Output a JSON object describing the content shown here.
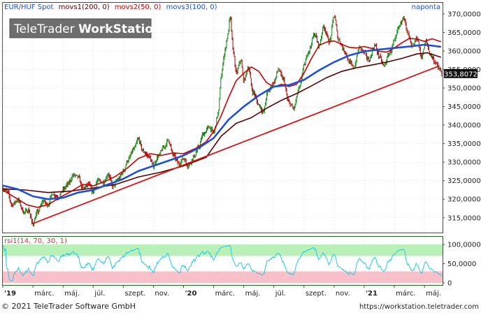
{
  "header": {
    "instrument": "EUR/HUF Spot",
    "indicators": [
      {
        "label": "movs1(200, 0)",
        "color": "#5a0000"
      },
      {
        "label": "movs2(50, 0)",
        "color": "#cc0000"
      },
      {
        "label": "movs3(100, 0)",
        "color": "#1e4fd8"
      }
    ],
    "period": "naponta"
  },
  "watermark": {
    "part1": "TeleTrader ",
    "part2": "WorkStation"
  },
  "price_badge": "353,8072",
  "footer": {
    "copyright": "© 2021 TeleTrader Software GmbH",
    "url": "https://workstation.teletrader.com"
  },
  "rsi": {
    "label": "rsi1(14, 70, 30, 1)",
    "ticks": [
      {
        "value": 100,
        "label": "100,0000"
      },
      {
        "value": 50,
        "label": "50,0000"
      },
      {
        "value": 0,
        "label": "0"
      }
    ],
    "upper_zone": [
      70,
      100
    ],
    "lower_zone": [
      0,
      30
    ],
    "colors": {
      "line": "#22c8e8",
      "upper": "#b8f0b8",
      "lower": "#f8c0c8"
    }
  },
  "chart_data": {
    "type": "line",
    "y_ticks": [
      {
        "value": 315000,
        "label": "315,0000"
      },
      {
        "value": 320000,
        "label": "320,0000"
      },
      {
        "value": 325000,
        "label": "325,0000"
      },
      {
        "value": 330000,
        "label": "330,0000"
      },
      {
        "value": 335000,
        "label": "335,0000"
      },
      {
        "value": 340000,
        "label": "340,0000"
      },
      {
        "value": 345000,
        "label": "345,0000"
      },
      {
        "value": 350000,
        "label": "350,0000"
      },
      {
        "value": 355000,
        "label": "355,0000"
      },
      {
        "value": 360000,
        "label": "360,0000"
      },
      {
        "value": 365000,
        "label": "365,0000"
      },
      {
        "value": 370000,
        "label": "370,0000"
      }
    ],
    "ylim": [
      311000,
      373000
    ],
    "x_ticks": [
      {
        "label": "'19",
        "m": 0,
        "bold": true
      },
      {
        "label": "márc.",
        "m": 2
      },
      {
        "label": "máj.",
        "m": 4
      },
      {
        "label": "júl.",
        "m": 6
      },
      {
        "label": "szept.",
        "m": 8
      },
      {
        "label": "nov.",
        "m": 10
      },
      {
        "label": "'20",
        "m": 12,
        "bold": true
      },
      {
        "label": "márc.",
        "m": 14
      },
      {
        "label": "máj.",
        "m": 16
      },
      {
        "label": "júl.",
        "m": 18
      },
      {
        "label": "szept.",
        "m": 20
      },
      {
        "label": "nov.",
        "m": 22
      },
      {
        "label": "'21",
        "m": 24,
        "bold": true
      },
      {
        "label": "márc.",
        "m": 26
      },
      {
        "label": "máj.",
        "m": 28
      }
    ],
    "xlim_months": [
      0,
      29.2
    ],
    "last_price": 353807,
    "price_anchors": [
      [
        0.0,
        322800
      ],
      [
        0.3,
        322000
      ],
      [
        0.6,
        318500
      ],
      [
        1.0,
        319800
      ],
      [
        1.4,
        316500
      ],
      [
        1.7,
        317000
      ],
      [
        2.0,
        313300
      ],
      [
        2.3,
        316500
      ],
      [
        2.7,
        319500
      ],
      [
        3.0,
        318500
      ],
      [
        3.3,
        321500
      ],
      [
        3.7,
        320500
      ],
      [
        4.0,
        322500
      ],
      [
        4.3,
        324000
      ],
      [
        4.7,
        326500
      ],
      [
        5.0,
        326000
      ],
      [
        5.3,
        323000
      ],
      [
        5.7,
        324000
      ],
      [
        6.0,
        322000
      ],
      [
        6.3,
        325000
      ],
      [
        6.7,
        324500
      ],
      [
        7.0,
        326800
      ],
      [
        7.3,
        323500
      ],
      [
        7.7,
        325500
      ],
      [
        8.0,
        327500
      ],
      [
        8.3,
        330500
      ],
      [
        8.7,
        333500
      ],
      [
        9.0,
        336200
      ],
      [
        9.3,
        333000
      ],
      [
        9.7,
        331500
      ],
      [
        10.0,
        329000
      ],
      [
        10.3,
        331500
      ],
      [
        10.7,
        334000
      ],
      [
        11.0,
        336000
      ],
      [
        11.3,
        332000
      ],
      [
        11.7,
        329500
      ],
      [
        12.0,
        331000
      ],
      [
        12.3,
        329000
      ],
      [
        12.7,
        331500
      ],
      [
        13.0,
        334000
      ],
      [
        13.3,
        337500
      ],
      [
        13.7,
        339500
      ],
      [
        14.0,
        338000
      ],
      [
        14.3,
        343000
      ],
      [
        14.5,
        353000
      ],
      [
        14.7,
        359000
      ],
      [
        14.9,
        363500
      ],
      [
        15.1,
        369000
      ],
      [
        15.3,
        360000
      ],
      [
        15.5,
        354000
      ],
      [
        15.8,
        357500
      ],
      [
        16.0,
        352000
      ],
      [
        16.3,
        355500
      ],
      [
        16.6,
        349000
      ],
      [
        17.0,
        345500
      ],
      [
        17.3,
        343500
      ],
      [
        17.6,
        349000
      ],
      [
        18.0,
        351500
      ],
      [
        18.3,
        355000
      ],
      [
        18.6,
        352500
      ],
      [
        19.0,
        346000
      ],
      [
        19.3,
        344500
      ],
      [
        19.7,
        350000
      ],
      [
        20.0,
        356000
      ],
      [
        20.3,
        360000
      ],
      [
        20.7,
        364500
      ],
      [
        21.0,
        361500
      ],
      [
        21.3,
        366500
      ],
      [
        21.7,
        362500
      ],
      [
        22.0,
        369500
      ],
      [
        22.3,
        363000
      ],
      [
        22.7,
        360000
      ],
      [
        23.0,
        357000
      ],
      [
        23.3,
        355500
      ],
      [
        23.7,
        361000
      ],
      [
        24.0,
        359500
      ],
      [
        24.3,
        357500
      ],
      [
        24.7,
        361500
      ],
      [
        25.0,
        358500
      ],
      [
        25.3,
        356000
      ],
      [
        25.7,
        359500
      ],
      [
        26.0,
        362500
      ],
      [
        26.3,
        366500
      ],
      [
        26.6,
        369300
      ],
      [
        26.9,
        364500
      ],
      [
        27.2,
        361000
      ],
      [
        27.5,
        363500
      ],
      [
        27.8,
        358500
      ],
      [
        28.1,
        362500
      ],
      [
        28.4,
        359000
      ],
      [
        28.7,
        357000
      ],
      [
        29.0,
        355000
      ],
      [
        29.15,
        353807
      ]
    ],
    "trendline": [
      [
        1.9,
        313300
      ],
      [
        29.0,
        356000
      ]
    ],
    "series": [
      {
        "name": "movs1(200, 0)",
        "color": "#5a0000",
        "width": 1.6,
        "values": [
          [
            0.0,
            322800
          ],
          [
            1.5,
            322500
          ],
          [
            3.0,
            321800
          ],
          [
            4.5,
            322200
          ],
          [
            6.0,
            323000
          ],
          [
            7.5,
            324000
          ],
          [
            9.0,
            326000
          ],
          [
            10.5,
            327300
          ],
          [
            12.0,
            329000
          ],
          [
            13.5,
            331300
          ],
          [
            14.5,
            337000
          ],
          [
            15.5,
            340500
          ],
          [
            16.5,
            342000
          ],
          [
            17.5,
            344500
          ],
          [
            18.5,
            346700
          ],
          [
            19.5,
            348500
          ],
          [
            20.5,
            350600
          ],
          [
            21.5,
            352800
          ],
          [
            22.5,
            354500
          ],
          [
            23.5,
            355500
          ],
          [
            24.5,
            356200
          ],
          [
            25.5,
            357000
          ],
          [
            26.5,
            358000
          ],
          [
            27.5,
            359200
          ],
          [
            28.2,
            359500
          ],
          [
            29.1,
            358300
          ]
        ]
      },
      {
        "name": "movs2(50, 0)",
        "color": "#cc0000",
        "width": 1.6,
        "values": [
          [
            0.0,
            322500
          ],
          [
            0.8,
            320500
          ],
          [
            1.6,
            318500
          ],
          [
            2.3,
            317800
          ],
          [
            3.0,
            318500
          ],
          [
            3.8,
            320500
          ],
          [
            4.5,
            322000
          ],
          [
            5.3,
            324000
          ],
          [
            6.0,
            323600
          ],
          [
            6.8,
            324800
          ],
          [
            7.5,
            326200
          ],
          [
            8.3,
            328500
          ],
          [
            9.0,
            331000
          ],
          [
            9.8,
            332300
          ],
          [
            10.5,
            331800
          ],
          [
            11.3,
            332500
          ],
          [
            12.0,
            332300
          ],
          [
            12.8,
            333700
          ],
          [
            13.5,
            335500
          ],
          [
            14.0,
            338300
          ],
          [
            14.5,
            342500
          ],
          [
            15.0,
            347500
          ],
          [
            15.5,
            352000
          ],
          [
            16.0,
            354000
          ],
          [
            16.5,
            355700
          ],
          [
            17.0,
            354500
          ],
          [
            17.5,
            351500
          ],
          [
            18.0,
            350300
          ],
          [
            18.5,
            351000
          ],
          [
            19.0,
            350400
          ],
          [
            19.5,
            351000
          ],
          [
            20.0,
            354000
          ],
          [
            20.5,
            358000
          ],
          [
            21.0,
            361500
          ],
          [
            21.5,
            362400
          ],
          [
            22.0,
            362700
          ],
          [
            22.5,
            361800
          ],
          [
            23.0,
            361000
          ],
          [
            23.5,
            360800
          ],
          [
            24.0,
            361200
          ],
          [
            24.5,
            360700
          ],
          [
            25.0,
            359900
          ],
          [
            25.5,
            359700
          ],
          [
            26.0,
            360800
          ],
          [
            26.5,
            362200
          ],
          [
            27.0,
            363400
          ],
          [
            27.5,
            363200
          ],
          [
            28.0,
            362600
          ],
          [
            28.5,
            363300
          ],
          [
            29.1,
            362500
          ]
        ]
      },
      {
        "name": "movs3(100, 0)",
        "color": "#1e4fd8",
        "width": 2.6,
        "values": [
          [
            0.0,
            323700
          ],
          [
            1.0,
            322700
          ],
          [
            2.0,
            320800
          ],
          [
            3.0,
            320000
          ],
          [
            4.0,
            320400
          ],
          [
            5.0,
            321800
          ],
          [
            6.0,
            322500
          ],
          [
            7.0,
            324000
          ],
          [
            8.0,
            325500
          ],
          [
            9.0,
            327600
          ],
          [
            10.0,
            329000
          ],
          [
            11.0,
            330400
          ],
          [
            12.0,
            331800
          ],
          [
            13.0,
            333800
          ],
          [
            14.0,
            336500
          ],
          [
            15.0,
            341500
          ],
          [
            16.0,
            345000
          ],
          [
            17.0,
            348000
          ],
          [
            18.0,
            350400
          ],
          [
            19.0,
            350800
          ],
          [
            20.0,
            352200
          ],
          [
            21.0,
            354800
          ],
          [
            22.0,
            357000
          ],
          [
            23.0,
            358800
          ],
          [
            24.0,
            359900
          ],
          [
            25.0,
            360400
          ],
          [
            26.0,
            360800
          ],
          [
            27.0,
            361200
          ],
          [
            28.0,
            361700
          ],
          [
            29.1,
            361100
          ]
        ]
      }
    ]
  }
}
